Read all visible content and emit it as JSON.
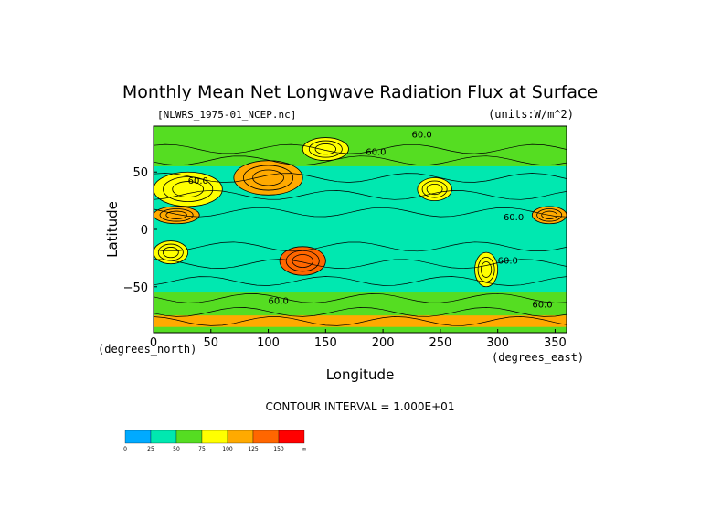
{
  "chart_data": {
    "type": "heatmap",
    "title": "Monthly Mean Net Longwave Radiation Flux at Surface",
    "subtitle_left": "[NLWRS_1975-01_NCEP.nc]",
    "subtitle_right": "(units:W/m^2)",
    "xlabel": "Longitude",
    "ylabel": "Latitude",
    "x_unit_label": "(degrees_east)",
    "y_unit_label": "(degrees_north)",
    "xlim": [
      0,
      360
    ],
    "ylim": [
      -90,
      90
    ],
    "x_ticks": [
      0,
      50,
      100,
      150,
      200,
      250,
      300,
      350
    ],
    "y_ticks": [
      -50,
      0,
      50
    ],
    "contour_interval_text": "CONTOUR INTERVAL = 1.000E+01",
    "contour_labels": [
      "60.0",
      "60.0",
      "60.0",
      "60.0",
      "60.0",
      "60.0",
      "60.0"
    ],
    "colorbar": {
      "levels": [
        0,
        25,
        50,
        75,
        100,
        125,
        150
      ],
      "tick_labels": [
        "0",
        "25",
        "50",
        "75",
        "100",
        "125",
        "150",
        "∞"
      ],
      "colors": [
        "#00aaff",
        "#00e8b0",
        "#55dd22",
        "#ffff00",
        "#ffaa00",
        "#ff6600",
        "#ff0000"
      ]
    },
    "regions_note_free": [],
    "field": [
      {
        "lon": [
          0,
          360
        ],
        "lat": [
          -90,
          90
        ],
        "value": 40
      },
      {
        "lon": [
          0,
          360
        ],
        "lat": [
          55,
          90
        ],
        "value": 60
      },
      {
        "lon": [
          0,
          360
        ],
        "lat": [
          -90,
          -55
        ],
        "value": 70
      },
      {
        "lon": [
          0,
          60
        ],
        "lat": [
          20,
          50
        ],
        "value": 90
      },
      {
        "lon": [
          70,
          130
        ],
        "lat": [
          30,
          60
        ],
        "value": 110
      },
      {
        "lon": [
          130,
          170
        ],
        "lat": [
          60,
          80
        ],
        "value": 80
      },
      {
        "lon": [
          230,
          260
        ],
        "lat": [
          25,
          45
        ],
        "value": 95
      },
      {
        "lon": [
          110,
          150
        ],
        "lat": [
          -40,
          -15
        ],
        "value": 130
      },
      {
        "lon": [
          0,
          30
        ],
        "lat": [
          -30,
          -10
        ],
        "value": 80
      },
      {
        "lon": [
          280,
          300
        ],
        "lat": [
          -50,
          -20
        ],
        "value": 85
      },
      {
        "lon": [
          0,
          40
        ],
        "lat": [
          5,
          20
        ],
        "value": 120
      },
      {
        "lon": [
          330,
          360
        ],
        "lat": [
          5,
          20
        ],
        "value": 110
      },
      {
        "lon": [
          0,
          360
        ],
        "lat": [
          -85,
          -75
        ],
        "value": 105
      }
    ]
  }
}
